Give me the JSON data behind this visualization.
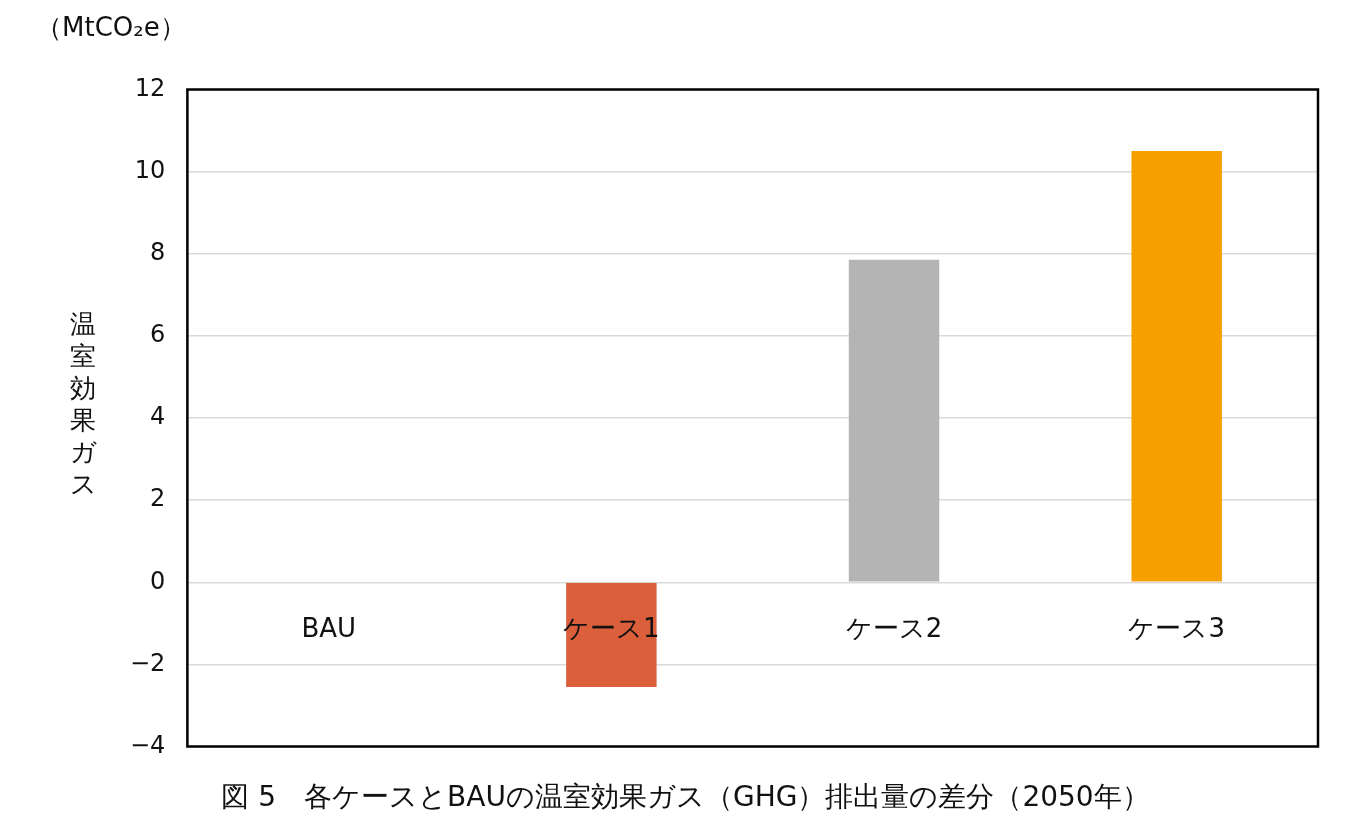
{
  "chart_data": {
    "type": "bar",
    "title": "図 5　各ケースとBAUの温室効果ガス（GHG）排出量の差分（2050年）",
    "ylabel": "温室効果ガス",
    "annotations": [
      "（MtCO₂e）"
    ],
    "categories": [
      "BAU",
      "ケース1",
      "ケース2",
      "ケース3"
    ],
    "values": [
      0,
      -2.55,
      7.85,
      10.5
    ],
    "colors": [
      null,
      "#dc5f3c",
      "#b4b4b4",
      "#f5a000"
    ],
    "ylim": [
      -4,
      12
    ],
    "yticks": [
      -4,
      -2,
      0,
      2,
      4,
      6,
      8,
      10,
      12
    ],
    "grid": "y",
    "legend": false
  }
}
